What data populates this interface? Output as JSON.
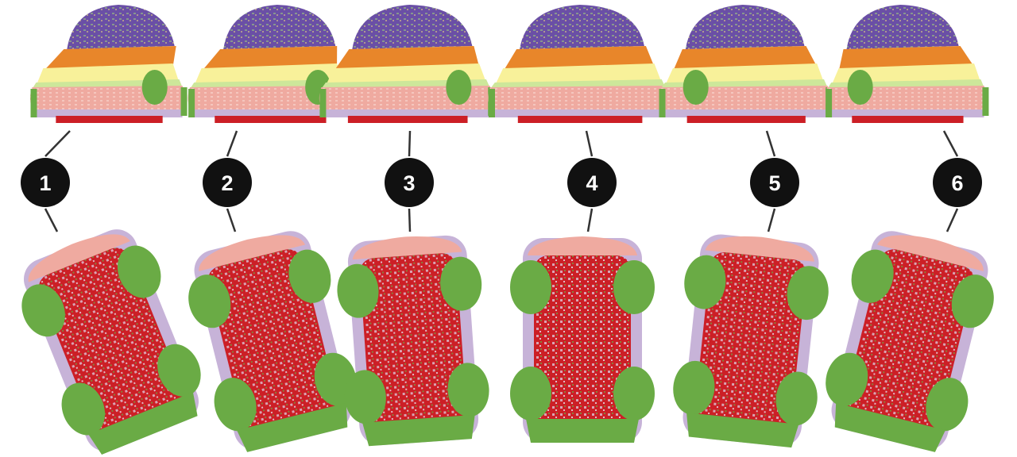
{
  "figure": {
    "columns": [
      {
        "label": "1"
      },
      {
        "label": "2"
      },
      {
        "label": "3"
      },
      {
        "label": "4"
      },
      {
        "label": "5"
      },
      {
        "label": "6"
      }
    ]
  },
  "colors": {
    "roof_purple": "#6a4fa6",
    "stripe_orange": "#e8862a",
    "stripe_yellow": "#f8f19a",
    "stripe_lightgreen": "#cde79a",
    "body_pink": "#efaaa0",
    "trim_lilac": "#c7b3d8",
    "wheel_green": "#6aab45",
    "underbody_red": "#cc1f26",
    "badge_black": "#111111",
    "connector_gray": "#333333"
  }
}
